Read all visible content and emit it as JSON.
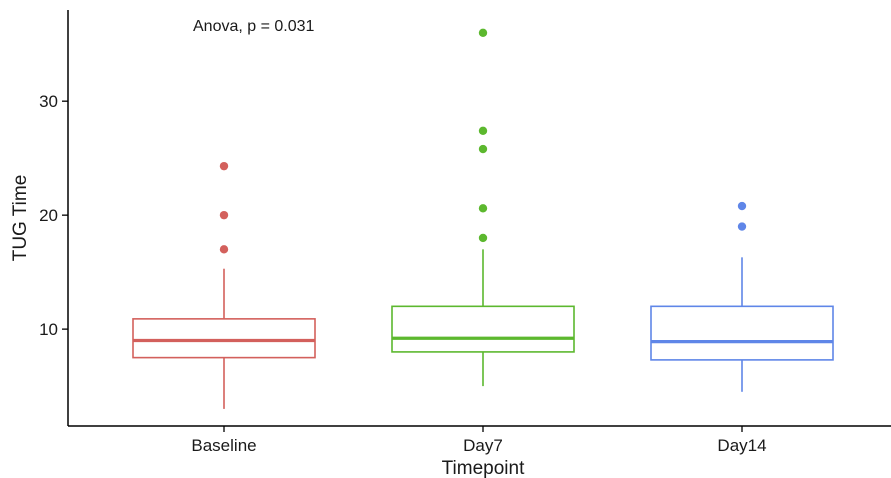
{
  "chart_data": {
    "type": "box",
    "title": "",
    "annotation": "Anova, p = 0.031",
    "xlabel": "Timepoint",
    "ylabel": "TUG Time",
    "ylim": [
      1.5,
      38
    ],
    "yticks": [
      10,
      20,
      30
    ],
    "grid": false,
    "legend": "none",
    "categories": [
      "Baseline",
      "Day7",
      "Day14"
    ],
    "boxes": [
      {
        "category": "Baseline",
        "color": "#d3605c",
        "whisker_low": 3,
        "q1": 7.5,
        "median": 9.0,
        "q3": 10.9,
        "whisker_high": 15.3,
        "outliers": [
          17.0,
          20.0,
          24.3
        ]
      },
      {
        "category": "Day7",
        "color": "#5cb82e",
        "whisker_low": 5,
        "q1": 8.0,
        "median": 9.2,
        "q3": 12.0,
        "whisker_high": 17.0,
        "outliers": [
          18.0,
          20.6,
          25.8,
          27.4,
          36.0
        ]
      },
      {
        "category": "Day14",
        "color": "#5f86e8",
        "whisker_low": 4.5,
        "q1": 7.3,
        "median": 8.9,
        "q3": 12.0,
        "whisker_high": 16.3,
        "outliers": [
          19.0,
          20.8
        ]
      }
    ]
  }
}
